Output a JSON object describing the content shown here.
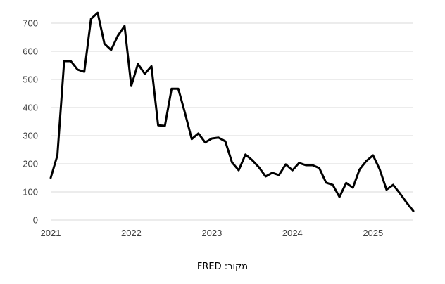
{
  "chart_data": {
    "type": "line",
    "title": "",
    "xlabel": "",
    "ylabel": "",
    "ylim": [
      0,
      700
    ],
    "yticks": [
      0,
      100,
      200,
      300,
      400,
      500,
      600,
      700
    ],
    "xlim": [
      2021.0,
      2025.5
    ],
    "xticks": [
      2021,
      2022,
      2023,
      2024,
      2025
    ],
    "ytick_labels": [
      "0",
      "100",
      "200",
      "300",
      "400",
      "500",
      "600",
      "700"
    ],
    "xtick_labels": [
      "2021",
      "2022",
      "2023",
      "2024",
      "2025"
    ],
    "grid": true,
    "line_color": "#000000",
    "grid_color": "#d9d9d9",
    "series": [
      {
        "name": "series",
        "x": [
          2021.0,
          2021.083,
          2021.167,
          2021.25,
          2021.333,
          2021.417,
          2021.5,
          2021.583,
          2021.667,
          2021.75,
          2021.833,
          2021.917,
          2022.0,
          2022.083,
          2022.167,
          2022.25,
          2022.333,
          2022.417,
          2022.5,
          2022.583,
          2022.667,
          2022.75,
          2022.833,
          2022.917,
          2023.0,
          2023.083,
          2023.167,
          2023.25,
          2023.333,
          2023.417,
          2023.5,
          2023.583,
          2023.667,
          2023.75,
          2023.833,
          2023.917,
          2024.0,
          2024.083,
          2024.167,
          2024.25,
          2024.333,
          2024.417,
          2024.5,
          2024.583,
          2024.667,
          2024.75,
          2024.833,
          2024.917,
          2025.0,
          2025.083,
          2025.167,
          2025.25,
          2025.333,
          2025.417,
          2025.5
        ],
        "values": [
          150,
          230,
          565,
          565,
          535,
          527,
          715,
          737,
          627,
          605,
          655,
          690,
          477,
          555,
          520,
          547,
          337,
          335,
          467,
          467,
          380,
          288,
          308,
          276,
          290,
          293,
          280,
          205,
          177,
          233,
          213,
          188,
          155,
          168,
          160,
          198,
          177,
          203,
          195,
          195,
          185,
          133,
          125,
          82,
          132,
          115,
          180,
          210,
          230,
          180,
          108,
          125,
          95,
          62,
          32
        ]
      }
    ]
  },
  "source_label": "מקור: FRED"
}
